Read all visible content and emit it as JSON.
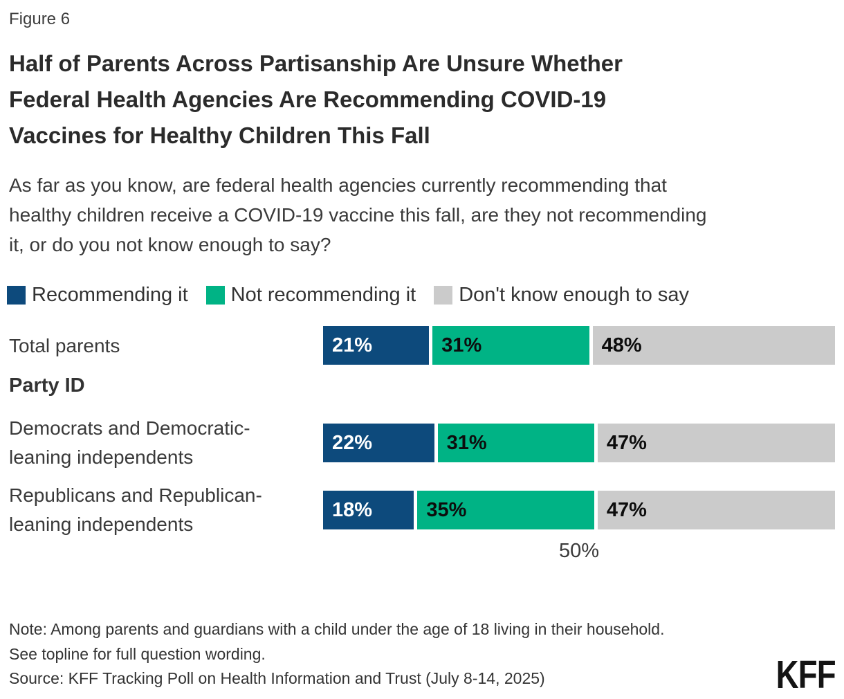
{
  "figure": {
    "label": "Figure 6"
  },
  "title": {
    "line1": "Half of Parents Across Partisanship Are Unsure Whether",
    "line2": "Federal Health Agencies Are Recommending COVID-19",
    "line3": "Vaccines for Healthy Children This Fall"
  },
  "subtitle": {
    "line1": "As far as you know, are federal health agencies currently recommending that",
    "line2": "healthy children receive a COVID-19 vaccine this fall, are they not recommending",
    "line3": "it, or do you not know enough to say?"
  },
  "legend": {
    "items": [
      {
        "label": "Recommending it",
        "color": "#0d4a7c"
      },
      {
        "label": "Not recommending it",
        "color": "#00b385"
      },
      {
        "label": "Don't know enough to say",
        "color": "#cbcbcb"
      }
    ]
  },
  "chart_data": {
    "type": "bar",
    "subtype": "horizontal-stacked",
    "title": "Half of Parents Across Partisanship Are Unsure Whether Federal Health Agencies Are Recommending COVID-19 Vaccines for Healthy Children This Fall",
    "categories": [
      "Total parents",
      "Democrats and Democratic-leaning independents",
      "Republicans and Republican-leaning independents"
    ],
    "section_heading": "Party ID",
    "series": [
      {
        "name": "Recommending it",
        "color": "#0d4a7c",
        "values": [
          21,
          22,
          18
        ]
      },
      {
        "name": "Not recommending it",
        "color": "#00b385",
        "values": [
          31,
          31,
          35
        ]
      },
      {
        "name": "Don't know enough to say",
        "color": "#cbcbcb",
        "values": [
          48,
          47,
          47
        ]
      }
    ],
    "unit": "%",
    "xlim": [
      0,
      100
    ],
    "x_tick_values": [
      50
    ],
    "x_tick_labels": [
      "50%"
    ],
    "grid": false,
    "legend_position": "top"
  },
  "rows": [
    {
      "label_line1": "Total parents",
      "label_line2": "",
      "segments": [
        {
          "text": "21%"
        },
        {
          "text": "31%"
        },
        {
          "text": "48%"
        }
      ]
    },
    {
      "label_line1": "Democrats and Democratic-",
      "label_line2": "leaning independents",
      "segments": [
        {
          "text": "22%"
        },
        {
          "text": "31%"
        },
        {
          "text": "47%"
        }
      ]
    },
    {
      "label_line1": "Republicans and Republican-",
      "label_line2": "leaning independents",
      "segments": [
        {
          "text": "18%"
        },
        {
          "text": "35%"
        },
        {
          "text": "47%"
        }
      ]
    }
  ],
  "section": {
    "heading": "Party ID"
  },
  "axis": {
    "tick_label": "50%"
  },
  "note": {
    "line1": "Note: Among parents and guardians with a child under the age of 18 living in their household.",
    "line2": "See topline for full question wording."
  },
  "source": {
    "text": "Source: KFF Tracking Poll on Health Information and Trust (July 8-14, 2025)"
  },
  "logo": {
    "text": "KFF"
  }
}
